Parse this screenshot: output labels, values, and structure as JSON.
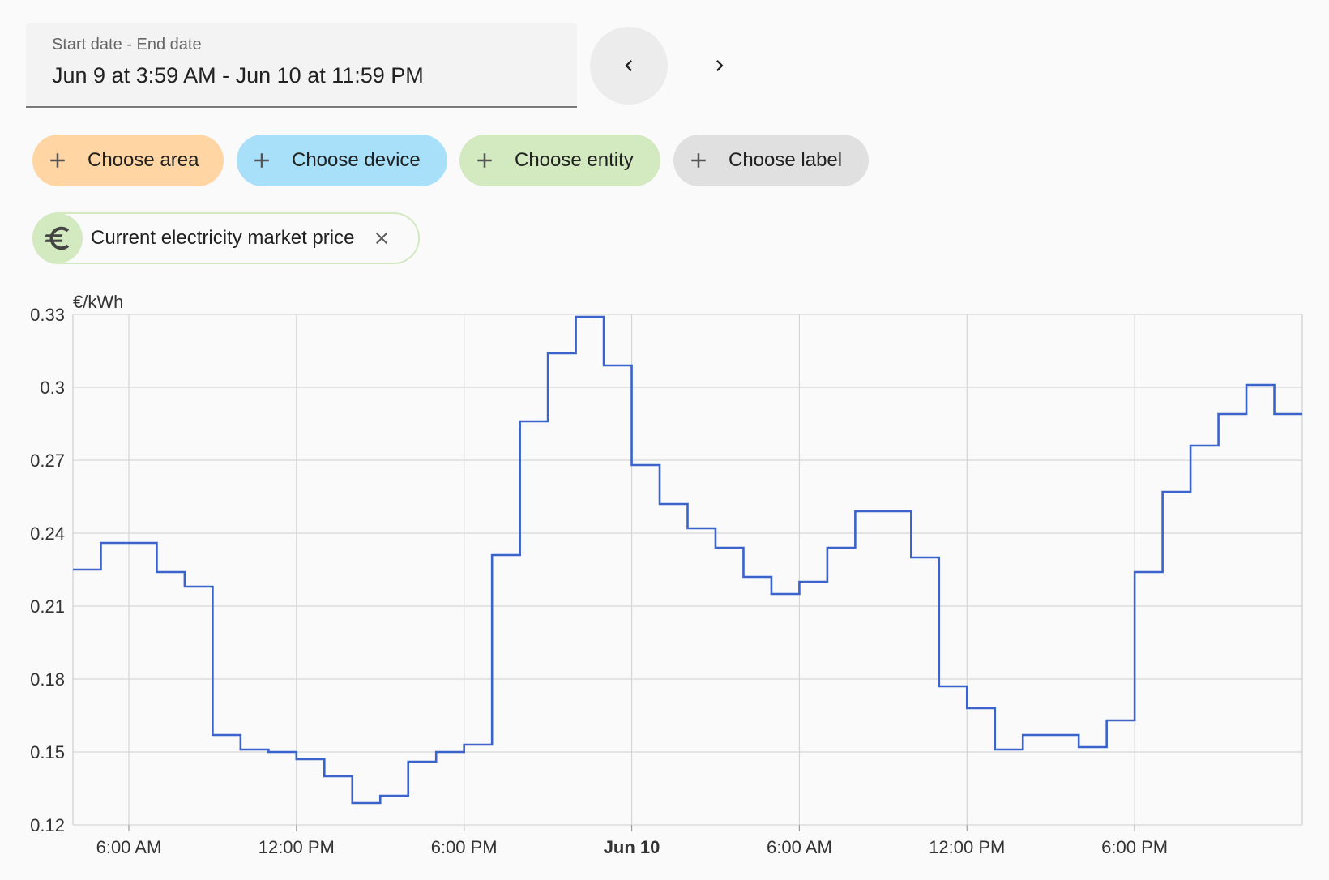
{
  "date_picker": {
    "label": "Start date - End date",
    "value": "Jun 9 at 3:59 AM - Jun 10 at 11:59 PM"
  },
  "nav": {
    "prev_icon": "chevron-left-icon",
    "next_icon": "chevron-right-icon"
  },
  "target_chips": [
    {
      "label": "Choose area",
      "color": "#ffd5a4"
    },
    {
      "label": "Choose device",
      "color": "#a8dff9"
    },
    {
      "label": "Choose entity",
      "color": "#d3e9bf"
    },
    {
      "label": "Choose label",
      "color": "#e0e0e0"
    }
  ],
  "selected_entity": {
    "name": "Current electricity market price",
    "icon": "euro-icon",
    "color": "#d3e9bf"
  },
  "chart_data": {
    "type": "line",
    "step": true,
    "unit": "€/kWh",
    "line_color": "#3b63cc",
    "grid": true,
    "x_range": [
      "2024-06-09T04:00",
      "2024-06-11T00:00"
    ],
    "ylim": [
      0.12,
      0.33
    ],
    "y_ticks": [
      "0.33",
      "0.3",
      "0.27",
      "0.24",
      "0.21",
      "0.18",
      "0.15",
      "0.12"
    ],
    "x_ticks": [
      {
        "label": "6:00 AM",
        "at": "2024-06-09T06:00",
        "bold": false
      },
      {
        "label": "12:00 PM",
        "at": "2024-06-09T12:00",
        "bold": false
      },
      {
        "label": "6:00 PM",
        "at": "2024-06-09T18:00",
        "bold": false
      },
      {
        "label": "Jun 10",
        "at": "2024-06-10T00:00",
        "bold": true
      },
      {
        "label": "6:00 AM",
        "at": "2024-06-10T06:00",
        "bold": false
      },
      {
        "label": "12:00 PM",
        "at": "2024-06-10T12:00",
        "bold": false
      },
      {
        "label": "6:00 PM",
        "at": "2024-06-10T18:00",
        "bold": false
      }
    ],
    "series": [
      {
        "x": [
          "2024-06-09T04:00",
          "2024-06-09T05:00",
          "2024-06-09T06:00",
          "2024-06-09T07:00",
          "2024-06-09T08:00",
          "2024-06-09T09:00",
          "2024-06-09T10:00",
          "2024-06-09T11:00",
          "2024-06-09T12:00",
          "2024-06-09T13:00",
          "2024-06-09T14:00",
          "2024-06-09T15:00",
          "2024-06-09T16:00",
          "2024-06-09T17:00",
          "2024-06-09T18:00",
          "2024-06-09T19:00",
          "2024-06-09T20:00",
          "2024-06-09T21:00",
          "2024-06-09T22:00",
          "2024-06-09T23:00",
          "2024-06-10T00:00",
          "2024-06-10T01:00",
          "2024-06-10T02:00",
          "2024-06-10T03:00",
          "2024-06-10T04:00",
          "2024-06-10T05:00",
          "2024-06-10T06:00",
          "2024-06-10T07:00",
          "2024-06-10T08:00",
          "2024-06-10T09:00",
          "2024-06-10T10:00",
          "2024-06-10T11:00",
          "2024-06-10T12:00",
          "2024-06-10T13:00",
          "2024-06-10T14:00",
          "2024-06-10T15:00",
          "2024-06-10T16:00",
          "2024-06-10T17:00",
          "2024-06-10T18:00",
          "2024-06-10T19:00",
          "2024-06-10T20:00",
          "2024-06-10T21:00",
          "2024-06-10T22:00",
          "2024-06-10T23:00"
        ],
        "values": [
          0.225,
          0.236,
          0.236,
          0.224,
          0.218,
          0.157,
          0.151,
          0.15,
          0.147,
          0.14,
          0.129,
          0.132,
          0.146,
          0.15,
          0.153,
          0.231,
          0.286,
          0.314,
          0.329,
          0.309,
          0.268,
          0.252,
          0.242,
          0.234,
          0.222,
          0.215,
          0.22,
          0.234,
          0.249,
          0.249,
          0.23,
          0.177,
          0.168,
          0.151,
          0.157,
          0.157,
          0.152,
          0.163,
          0.224,
          0.257,
          0.276,
          0.289,
          0.301,
          0.289
        ]
      }
    ]
  }
}
